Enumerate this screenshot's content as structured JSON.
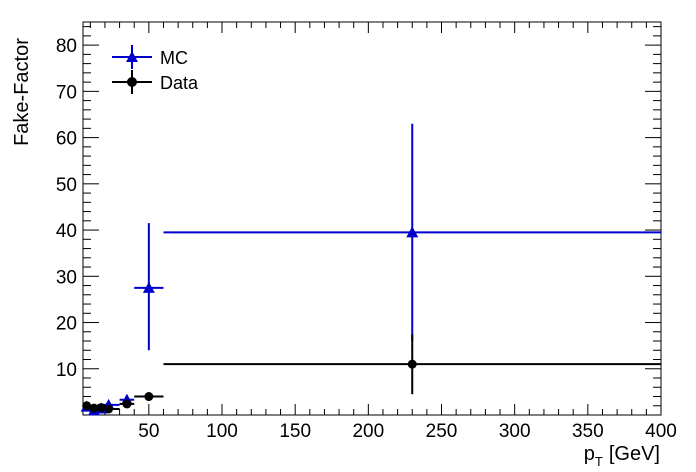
{
  "chart_data": {
    "type": "scatter",
    "title": "",
    "xlabel": "p",
    "xlabel_sub": "T",
    "xlabel_unit": "[GeV]",
    "ylabel": "Fake-Factor",
    "xlim": [
      5,
      400
    ],
    "ylim": [
      0,
      85
    ],
    "x_ticks": [
      50,
      100,
      150,
      200,
      250,
      300,
      350,
      400
    ],
    "y_ticks": [
      10,
      20,
      30,
      40,
      50,
      60,
      70,
      80
    ],
    "grid": false,
    "legend_position": "top-left",
    "series": [
      {
        "name": "MC",
        "color": "#0000cc",
        "marker": "triangle-up",
        "points": [
          {
            "x": 7.5,
            "xlo": 5,
            "xhi": 10,
            "y": 1.8,
            "ylo": 1.3,
            "yhi": 2.3
          },
          {
            "x": 12.5,
            "xlo": 10,
            "xhi": 15,
            "y": 1.0,
            "ylo": 0.6,
            "yhi": 1.5
          },
          {
            "x": 17.5,
            "xlo": 15,
            "xhi": 20,
            "y": 1.4,
            "ylo": 1.0,
            "yhi": 1.9
          },
          {
            "x": 22.5,
            "xlo": 15,
            "xhi": 30,
            "y": 2.2,
            "ylo": 1.5,
            "yhi": 3.0
          },
          {
            "x": 35,
            "xlo": 30,
            "xhi": 40,
            "y": 3.3,
            "ylo": 2.3,
            "yhi": 4.3
          },
          {
            "x": 50,
            "xlo": 40,
            "xhi": 60,
            "y": 27.5,
            "ylo": 14,
            "yhi": 41.5
          },
          {
            "x": 230,
            "xlo": 60,
            "xhi": 400,
            "y": 39.5,
            "ylo": 16,
            "yhi": 63
          }
        ]
      },
      {
        "name": "Data",
        "color": "#000000",
        "marker": "circle",
        "points": [
          {
            "x": 7.5,
            "xlo": 5,
            "xhi": 10,
            "y": 2.0,
            "ylo": 1.7,
            "yhi": 2.3
          },
          {
            "x": 12.5,
            "xlo": 10,
            "xhi": 15,
            "y": 1.5,
            "ylo": 1.2,
            "yhi": 1.8
          },
          {
            "x": 17.5,
            "xlo": 15,
            "xhi": 20,
            "y": 1.6,
            "ylo": 1.3,
            "yhi": 1.9
          },
          {
            "x": 22.5,
            "xlo": 15,
            "xhi": 30,
            "y": 1.3,
            "ylo": 1.0,
            "yhi": 1.6
          },
          {
            "x": 35,
            "xlo": 30,
            "xhi": 40,
            "y": 2.4,
            "ylo": 2.0,
            "yhi": 2.8
          },
          {
            "x": 50,
            "xlo": 40,
            "xhi": 60,
            "y": 4.0,
            "ylo": 3.4,
            "yhi": 4.6
          },
          {
            "x": 230,
            "xlo": 60,
            "xhi": 400,
            "y": 11.0,
            "ylo": 4.5,
            "yhi": 17.5
          }
        ]
      }
    ]
  }
}
